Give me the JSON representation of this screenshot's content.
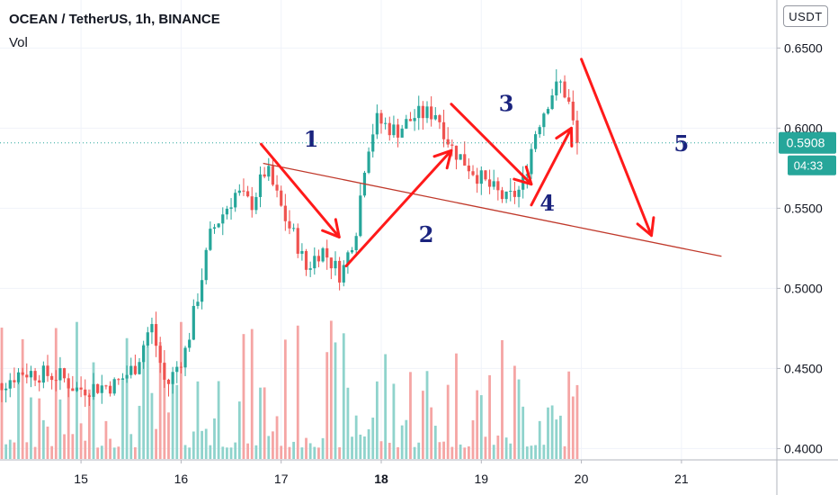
{
  "chart_title": "OCEAN / TetherUS, 1h, BINANCE",
  "volume_label": "Vol",
  "unit_button": "USDT",
  "last_price_label": "0.5908",
  "countdown_label": "04:33",
  "colors": {
    "up": "#26a69a",
    "down": "#ef5350",
    "up_volume": "#8fd3cc",
    "down_volume": "#f5a5a4",
    "annotation": "#ff1a1a",
    "trendline": "#c0392b",
    "wave_numbers": "#1a237e",
    "last_price": "#26a69a"
  },
  "chart_data": {
    "type": "candlestick",
    "y_axis": {
      "ticks": [
        "0.6500",
        "0.6000",
        "0.5500",
        "0.5000",
        "0.4500",
        "0.4000"
      ],
      "ylim": [
        0.3935,
        0.6575
      ]
    },
    "x_axis": {
      "ticks": [
        "15",
        "16",
        "17",
        "18",
        "19",
        "20",
        "21"
      ],
      "bold_tick": "18"
    },
    "last_price": 0.5908,
    "price_path": [
      [
        14.0,
        0.432
      ],
      [
        14.4,
        0.448
      ],
      [
        14.8,
        0.445
      ],
      [
        14.95,
        0.437
      ],
      [
        15.35,
        0.44
      ],
      [
        15.55,
        0.452
      ],
      [
        15.7,
        0.478
      ],
      [
        15.85,
        0.438
      ],
      [
        16.05,
        0.462
      ],
      [
        16.2,
        0.505
      ],
      [
        16.3,
        0.535
      ],
      [
        16.55,
        0.56
      ],
      [
        16.7,
        0.552
      ],
      [
        16.85,
        0.575
      ],
      [
        17.05,
        0.542
      ],
      [
        17.15,
        0.53
      ],
      [
        17.25,
        0.512
      ],
      [
        17.4,
        0.525
      ],
      [
        17.6,
        0.508
      ],
      [
        17.75,
        0.538
      ],
      [
        17.85,
        0.585
      ],
      [
        17.95,
        0.605
      ],
      [
        18.15,
        0.598
      ],
      [
        18.35,
        0.608
      ],
      [
        18.55,
        0.61
      ],
      [
        18.7,
        0.588
      ],
      [
        18.85,
        0.578
      ],
      [
        19.05,
        0.565
      ],
      [
        19.25,
        0.555
      ],
      [
        19.4,
        0.562
      ],
      [
        19.55,
        0.6
      ],
      [
        19.7,
        0.622
      ],
      [
        19.8,
        0.628
      ],
      [
        19.88,
        0.614
      ],
      [
        19.93,
        0.598
      ],
      [
        19.97,
        0.5908
      ]
    ],
    "volume_max_ratio": 0.33,
    "trendline": {
      "from": [
        16.82,
        0.578
      ],
      "to": [
        21.4,
        0.52
      ]
    },
    "arrows": [
      {
        "from": [
          16.8,
          0.59
        ],
        "to": [
          17.58,
          0.532
        ]
      },
      {
        "from": [
          17.65,
          0.514
        ],
        "to": [
          18.7,
          0.586
        ]
      },
      {
        "from": [
          18.7,
          0.615
        ],
        "to": [
          19.5,
          0.565
        ]
      },
      {
        "from": [
          19.5,
          0.552
        ],
        "to": [
          19.9,
          0.6
        ]
      },
      {
        "from": [
          20.0,
          0.643
        ],
        "to": [
          20.7,
          0.533
        ]
      }
    ],
    "wave_labels": [
      {
        "text": "1",
        "x": 17.3,
        "y": 0.5885
      },
      {
        "text": "2",
        "x": 18.45,
        "y": 0.529
      },
      {
        "text": "3",
        "x": 19.25,
        "y": 0.6105
      },
      {
        "text": "4",
        "x": 19.66,
        "y": 0.5485
      },
      {
        "text": "5",
        "x": 21.0,
        "y": 0.5855
      }
    ]
  }
}
